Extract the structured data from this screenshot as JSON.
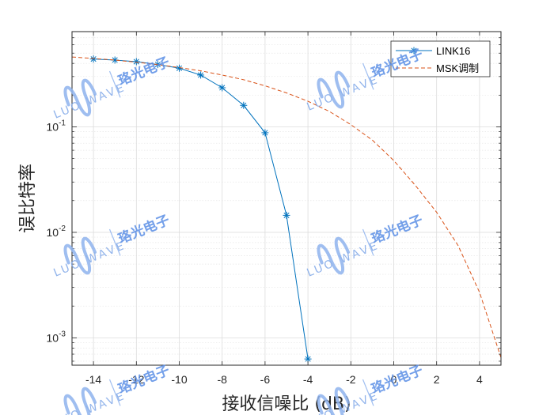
{
  "chart_data": {
    "type": "line",
    "title": "",
    "xlabel": "接收信噪比 (dB)",
    "ylabel": "误比特率",
    "xlim": [
      -15,
      5
    ],
    "ylim": [
      0.00055,
      0.8
    ],
    "yscale": "log",
    "xticks": [
      -14,
      -12,
      -10,
      -8,
      -6,
      -4,
      -2,
      0,
      2,
      4
    ],
    "yticks": [
      {
        "value": 0.1,
        "base": "10",
        "exp": "-1"
      },
      {
        "value": 0.01,
        "base": "10",
        "exp": "-2"
      },
      {
        "value": 0.001,
        "base": "10",
        "exp": "-3"
      }
    ],
    "grid": true,
    "legend_position": "top-right",
    "series": [
      {
        "name": "LINK16",
        "color": "#0072BD",
        "style": "solid",
        "marker": "asterisk",
        "x": [
          -14,
          -13,
          -12,
          -11,
          -10,
          -9,
          -8,
          -7,
          -6,
          -5,
          -4
        ],
        "y": [
          0.44,
          0.43,
          0.415,
          0.39,
          0.36,
          0.31,
          0.235,
          0.16,
          0.088,
          0.0145,
          0.00063
        ]
      },
      {
        "name": "MSK调制",
        "color": "#D95319",
        "style": "dashed",
        "marker": "none",
        "x": [
          -15,
          -14,
          -13,
          -12,
          -11,
          -10,
          -9,
          -8,
          -7,
          -6,
          -5,
          -4,
          -3,
          -2,
          -1,
          0,
          1,
          2,
          3,
          4,
          5
        ],
        "y": [
          0.46,
          0.445,
          0.43,
          0.41,
          0.39,
          0.365,
          0.34,
          0.31,
          0.28,
          0.245,
          0.21,
          0.175,
          0.14,
          0.105,
          0.075,
          0.048,
          0.028,
          0.0155,
          0.0075,
          0.0027,
          0.00065
        ]
      }
    ]
  },
  "watermark": {
    "latin": "LUO WAVE",
    "chinese": "珞光电子"
  }
}
